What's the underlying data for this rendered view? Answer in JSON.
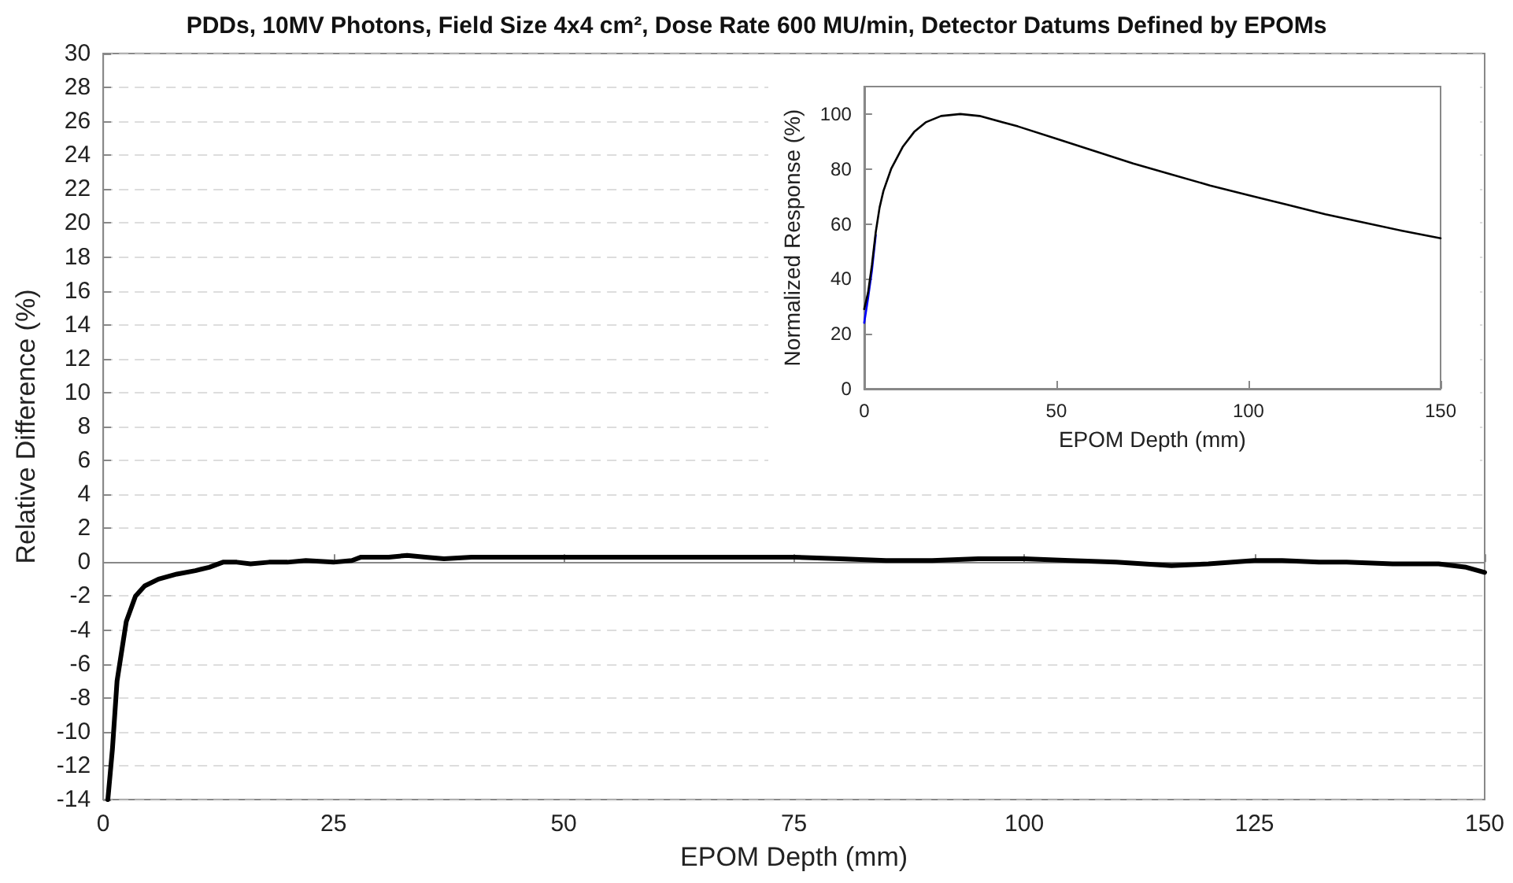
{
  "chart_data": [
    {
      "type": "line",
      "title": "PDDs, 10MV Photons, Field Size 4x4 cm², Dose Rate 600 MU/min, Detector Datums Defined by EPOMs",
      "xlabel": "EPOM Depth (mm)",
      "ylabel": "Relative Difference (%)",
      "xlim": [
        0,
        150
      ],
      "ylim": [
        -14,
        30
      ],
      "xticks": [
        0,
        25,
        50,
        75,
        100,
        125,
        150
      ],
      "yticks": [
        -14,
        -12,
        -10,
        -8,
        -6,
        -4,
        -2,
        0,
        2,
        4,
        6,
        8,
        10,
        12,
        14,
        16,
        18,
        20,
        22,
        24,
        26,
        28,
        30
      ],
      "grid": "y",
      "marker": "none",
      "line_style": "solid",
      "x": [
        0.5,
        1,
        1.5,
        2.5,
        3.5,
        4.5,
        6,
        8,
        10,
        11.5,
        13,
        14.5,
        16,
        18,
        20,
        22,
        25,
        27,
        28,
        31,
        33,
        35,
        37,
        40,
        45,
        50,
        55,
        60,
        65,
        70,
        75,
        80,
        85,
        90,
        95,
        100,
        105,
        110,
        116,
        120,
        125,
        128,
        132,
        135,
        140,
        145,
        148,
        150
      ],
      "series": [
        {
          "color": "#000000",
          "values": [
            -14,
            -11,
            -7,
            -3.5,
            -2,
            -1.4,
            -1.0,
            -0.7,
            -0.5,
            -0.3,
            0,
            0,
            -0.1,
            0,
            0,
            0.1,
            0,
            0.1,
            0.3,
            0.3,
            0.4,
            0.3,
            0.2,
            0.3,
            0.3,
            0.3,
            0.3,
            0.3,
            0.3,
            0.3,
            0.3,
            0.2,
            0.1,
            0.1,
            0.2,
            0.2,
            0.1,
            0,
            -0.2,
            -0.1,
            0.1,
            0.1,
            0,
            0,
            -0.1,
            -0.1,
            -0.3,
            -0.6
          ]
        }
      ]
    },
    {
      "type": "line",
      "xlabel": "EPOM Depth (mm)",
      "ylabel": "Normalized Response (%)",
      "xlim": [
        0,
        150
      ],
      "ylim": [
        0,
        110
      ],
      "xticks": [
        0,
        50,
        100,
        150
      ],
      "yticks": [
        0,
        20,
        40,
        60,
        80,
        100
      ],
      "grid": false,
      "marker": "none",
      "line_style": "solid",
      "x": [
        0,
        1,
        2,
        3,
        4,
        5,
        7,
        10,
        13,
        16,
        20,
        25,
        30,
        40,
        50,
        60,
        70,
        80,
        90,
        100,
        110,
        120,
        130,
        140,
        150
      ],
      "series": [
        {
          "color": "#0000ff",
          "values": [
            24,
            33,
            43,
            56,
            null,
            null,
            null,
            null,
            null,
            null,
            null,
            null,
            null,
            null,
            null,
            null,
            null,
            null,
            null,
            null,
            null,
            null,
            null,
            null,
            null
          ]
        },
        {
          "color": "#000000",
          "values": [
            29,
            35,
            45,
            57,
            66,
            72,
            80,
            88,
            93.5,
            97,
            99.3,
            100,
            99.3,
            95.5,
            91,
            86.5,
            82,
            78,
            74,
            70.5,
            67,
            63.5,
            60.5,
            57.5,
            54.8
          ]
        }
      ]
    }
  ]
}
